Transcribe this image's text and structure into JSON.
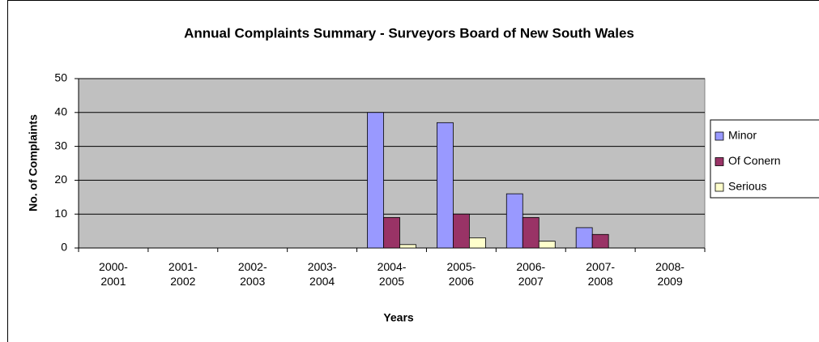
{
  "chart_data": {
    "type": "bar",
    "title": "Annual Complaints Summary - Surveyors Board of New South Wales",
    "x_label": "Years",
    "y_label": "No. of Complaints",
    "categories": [
      "2000-2001",
      "2001-2002",
      "2002-2003",
      "2003-2004",
      "2004-2005",
      "2005-2006",
      "2006-2007",
      "2007-2008",
      "2008-2009"
    ],
    "series": [
      {
        "name": "Minor",
        "color": "#9999ff",
        "values": [
          0,
          0,
          0,
          0,
          40,
          37,
          16,
          6,
          0
        ]
      },
      {
        "name": "Of Conern",
        "color": "#993366",
        "values": [
          0,
          0,
          0,
          0,
          9,
          10,
          9,
          4,
          0
        ]
      },
      {
        "name": "Serious",
        "color": "#ffffcc",
        "values": [
          0,
          0,
          0,
          0,
          1,
          3,
          2,
          0,
          0
        ]
      }
    ],
    "ylim": [
      0,
      50
    ],
    "yticks": [
      0,
      10,
      20,
      30,
      40,
      50
    ],
    "grid": true,
    "legend": "right",
    "plot_background": "#c0c0c0"
  }
}
